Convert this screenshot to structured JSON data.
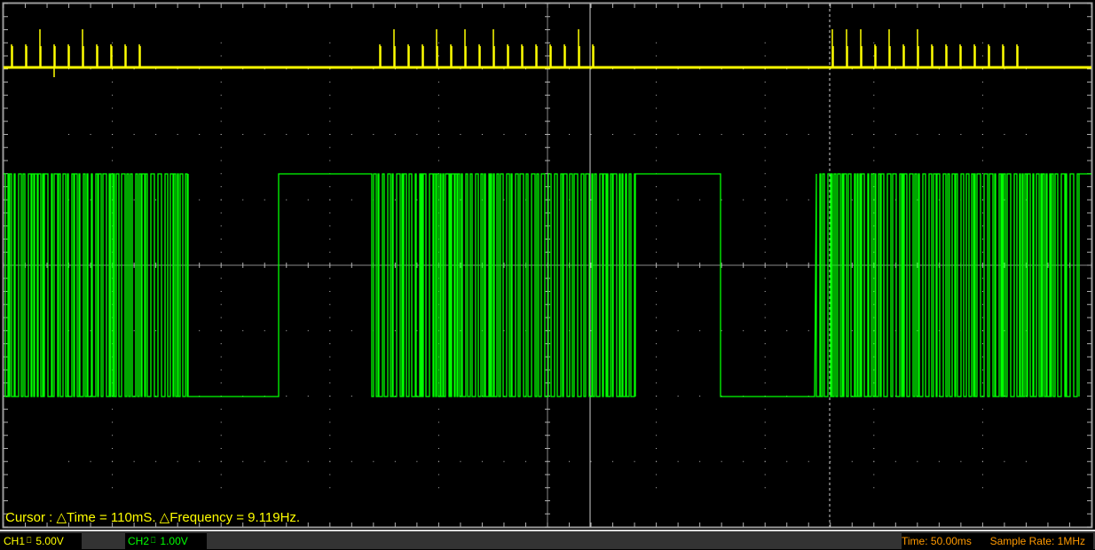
{
  "colors": {
    "ch1": "#ffff00",
    "ch2": "#00ff00",
    "status": "#ff9900",
    "grid": "#c0c0c0",
    "background": "#000000"
  },
  "cursor_readout": "Cursor : △Time = 110mS. △Frequency = 9.119Hz.",
  "status_bar": {
    "ch1": {
      "label": "CH1",
      "coupling_icon": "dc-coupling-icon",
      "scale": "5.00V"
    },
    "ch2": {
      "label": "CH2",
      "coupling_icon": "dc-coupling-icon",
      "scale": "1.00V"
    },
    "time": "Time: 50.00ms",
    "sample_rate": "Sample Rate: 1MHz"
  }
}
